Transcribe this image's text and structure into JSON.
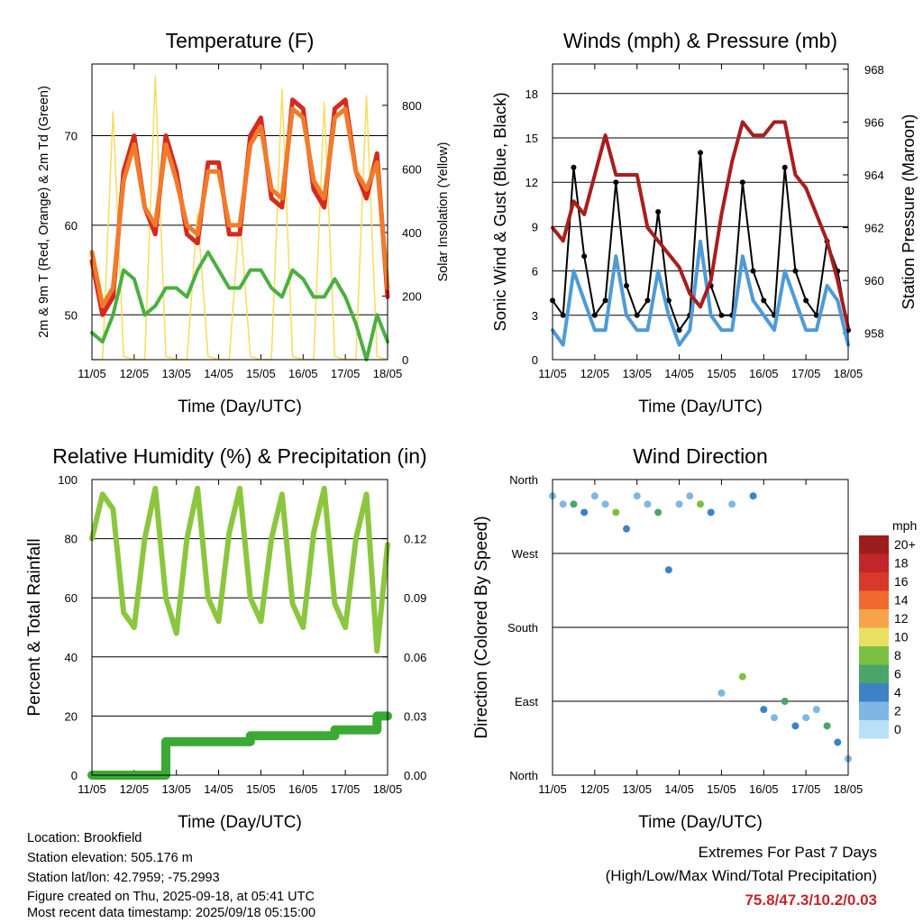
{
  "x_ticks": [
    "11/05",
    "12/05",
    "13/05",
    "14/05",
    "15/05",
    "16/05",
    "17/05",
    "18/05"
  ],
  "panels": {
    "temperature": {
      "title": "Temperature (F)",
      "xlabel": "Time (Day/UTC)",
      "ylabel_left": "2m & 9m T (Red, Orange) & 2m Td (Green)",
      "ylabel_right": "Solar Insolation (Yellow)",
      "yticks_left": [
        "50",
        "60",
        "70"
      ],
      "yticks_right": [
        "0",
        "200",
        "400",
        "600",
        "800"
      ]
    },
    "winds": {
      "title": "Winds (mph) & Pressure (mb)",
      "xlabel": "Time (Day/UTC)",
      "ylabel_left": "Sonic Wind & Gust (Blue, Black)",
      "ylabel_right": "Station Pressure (Maroon)",
      "yticks_left": [
        "0",
        "3",
        "6",
        "9",
        "12",
        "15",
        "18"
      ],
      "yticks_right": [
        "958",
        "960",
        "962",
        "964",
        "966",
        "968"
      ]
    },
    "humidity": {
      "title": "Relative Humidity (%) & Precipitation (in)",
      "xlabel": "Time (Day/UTC)",
      "ylabel_left": "Percent & Total Rainfall",
      "yticks_left": [
        "0",
        "20",
        "40",
        "60",
        "80",
        "100"
      ],
      "yticks_right": [
        "0.00",
        "0.03",
        "0.06",
        "0.09",
        "0.12"
      ]
    },
    "direction": {
      "title": "Wind Direction",
      "xlabel": "Time (Day/UTC)",
      "ylabel_left": "Direction (Colored By Speed)",
      "yticks_left": [
        "North",
        "East",
        "South",
        "West",
        "North"
      ],
      "legend_title": "mph",
      "legend_labels": [
        "20+",
        "18",
        "16",
        "14",
        "12",
        "10",
        "8",
        "6",
        "4",
        "2",
        "0"
      ]
    }
  },
  "chart_data": [
    {
      "type": "line",
      "title": "Temperature (F)",
      "xlabel": "Time (Day/UTC)",
      "ylabel": "2m & 9m T (Red, Orange) & 2m Td (Green)",
      "y2label": "Solar Insolation (Yellow)",
      "x": [
        "11/05",
        "11/05 06",
        "11/05 12",
        "11/05 18",
        "12/05",
        "12/05 06",
        "12/05 12",
        "12/05 18",
        "13/05",
        "13/05 06",
        "13/05 12",
        "13/05 18",
        "14/05",
        "14/05 06",
        "14/05 12",
        "14/05 18",
        "15/05",
        "15/05 06",
        "15/05 12",
        "15/05 18",
        "16/05",
        "16/05 06",
        "16/05 12",
        "16/05 18",
        "17/05",
        "17/05 06",
        "17/05 12",
        "17/05 18",
        "18/05"
      ],
      "ylim": [
        45,
        78
      ],
      "y2lim": [
        0,
        930
      ],
      "series": [
        {
          "name": "2m T",
          "color": "#d42a20",
          "values": [
            56,
            50,
            52,
            66,
            70,
            62,
            59,
            70,
            66,
            59,
            58,
            67,
            67,
            59,
            59,
            70,
            72,
            63,
            62,
            74,
            73,
            64,
            62,
            73,
            74,
            66,
            63,
            68,
            52
          ]
        },
        {
          "name": "9m T",
          "color": "#f07c2a",
          "values": [
            57,
            51,
            53,
            65,
            69,
            62,
            60,
            69,
            65,
            60,
            59,
            66,
            66,
            60,
            60,
            69,
            71,
            64,
            63,
            73,
            72,
            65,
            63,
            72,
            73,
            66,
            64,
            67,
            53
          ]
        },
        {
          "name": "2m Td",
          "color": "#4ab040",
          "values": [
            48,
            47,
            50,
            55,
            54,
            50,
            51,
            53,
            53,
            52,
            55,
            57,
            55,
            53,
            53,
            55,
            55,
            53,
            52,
            55,
            54,
            52,
            52,
            54,
            52,
            49,
            45,
            50,
            47
          ]
        },
        {
          "name": "Solar Insolation",
          "color": "#f7dc5c",
          "axis": "right",
          "values": [
            0,
            0,
            780,
            10,
            0,
            0,
            890,
            10,
            0,
            0,
            460,
            10,
            0,
            0,
            460,
            10,
            0,
            0,
            850,
            10,
            0,
            0,
            810,
            10,
            0,
            0,
            830,
            10,
            0
          ]
        }
      ]
    },
    {
      "type": "line",
      "title": "Winds (mph) & Pressure (mb)",
      "xlabel": "Time (Day/UTC)",
      "ylabel": "Sonic Wind & Gust (Blue, Black)",
      "y2label": "Station Pressure (Maroon)",
      "x": [
        "11/05",
        "11/05 06",
        "11/05 12",
        "11/05 18",
        "12/05",
        "12/05 06",
        "12/05 12",
        "12/05 18",
        "13/05",
        "13/05 06",
        "13/05 12",
        "13/05 18",
        "14/05",
        "14/05 06",
        "14/05 12",
        "14/05 18",
        "15/05",
        "15/05 06",
        "15/05 12",
        "15/05 18",
        "16/05",
        "16/05 06",
        "16/05 12",
        "16/05 18",
        "17/05",
        "17/05 06",
        "17/05 12",
        "17/05 18",
        "18/05"
      ],
      "ylim": [
        0,
        20
      ],
      "y2lim": [
        957,
        968.2
      ],
      "series": [
        {
          "name": "Sonic Wind",
          "color": "#4f9ad6",
          "values": [
            2,
            1,
            6,
            4,
            2,
            2,
            7,
            3,
            2,
            2,
            6,
            3,
            1,
            2,
            8,
            3,
            2,
            2,
            7,
            4,
            3,
            2,
            6,
            4,
            2,
            2,
            5,
            4,
            1
          ]
        },
        {
          "name": "Gust",
          "color": "#000000",
          "values": [
            4,
            3,
            13,
            7,
            3,
            4,
            12,
            5,
            3,
            4,
            10,
            4,
            2,
            3,
            14,
            5,
            3,
            3,
            12,
            6,
            4,
            3,
            13,
            6,
            4,
            3,
            8,
            6,
            2
          ]
        },
        {
          "name": "Station Pressure",
          "color": "#a81e1e",
          "axis": "right",
          "values": [
            962,
            961.5,
            963,
            962.5,
            964,
            965.5,
            964,
            964,
            964,
            962,
            961.5,
            961,
            960.5,
            959.5,
            959,
            960,
            962.5,
            964.5,
            966,
            965.5,
            965.5,
            966,
            966,
            964,
            963.5,
            962.5,
            961.5,
            960,
            958.2
          ]
        }
      ]
    },
    {
      "type": "line",
      "title": "Relative Humidity (%) & Precipitation (in)",
      "xlabel": "Time (Day/UTC)",
      "ylabel": "Percent & Total Rainfall",
      "x": [
        "11/05",
        "11/05 06",
        "11/05 12",
        "11/05 18",
        "12/05",
        "12/05 06",
        "12/05 12",
        "12/05 18",
        "13/05",
        "13/05 06",
        "13/05 12",
        "13/05 18",
        "14/05",
        "14/05 06",
        "14/05 12",
        "14/05 18",
        "15/05",
        "15/05 06",
        "15/05 12",
        "15/05 18",
        "16/05",
        "16/05 06",
        "16/05 12",
        "16/05 18",
        "17/05",
        "17/05 06",
        "17/05 12",
        "17/05 18",
        "18/05"
      ],
      "ylim": [
        0,
        100
      ],
      "y2lim": [
        0,
        0.15
      ],
      "series": [
        {
          "name": "Relative Humidity",
          "color": "#8cc63f",
          "values": [
            80,
            95,
            90,
            55,
            50,
            80,
            97,
            60,
            48,
            80,
            97,
            60,
            52,
            82,
            97,
            60,
            52,
            80,
            95,
            58,
            50,
            82,
            97,
            58,
            50,
            80,
            95,
            42,
            78
          ]
        },
        {
          "name": "Total Precipitation",
          "color": "#3aaa35",
          "axis": "right",
          "values": [
            0,
            0,
            0,
            0,
            0,
            0,
            0.0,
            0.017,
            0.017,
            0.017,
            0.017,
            0.017,
            0.017,
            0.017,
            0.017,
            0.02,
            0.02,
            0.02,
            0.02,
            0.02,
            0.02,
            0.02,
            0.02,
            0.023,
            0.023,
            0.023,
            0.023,
            0.03,
            0.03
          ]
        }
      ]
    },
    {
      "type": "scatter",
      "title": "Wind Direction",
      "xlabel": "Time (Day/UTC)",
      "ylabel": "Direction (Colored By Speed)",
      "x": [
        "11/05",
        "11/05 06",
        "11/05 12",
        "11/05 18",
        "12/05",
        "12/05 06",
        "12/05 12",
        "12/05 18",
        "13/05",
        "13/05 06",
        "13/05 12",
        "13/05 18",
        "14/05",
        "14/05 06",
        "14/05 12",
        "14/05 18",
        "15/05",
        "15/05 06",
        "15/05 12",
        "15/05 18",
        "16/05",
        "16/05 06",
        "16/05 12",
        "16/05 18",
        "17/05",
        "17/05 06",
        "17/05 12",
        "17/05 18",
        "18/05"
      ],
      "ylim": [
        0,
        360
      ],
      "series": [
        {
          "name": "Direction (deg)",
          "values": [
            340,
            330,
            330,
            320,
            340,
            330,
            320,
            300,
            340,
            330,
            320,
            250,
            330,
            340,
            330,
            320,
            100,
            330,
            120,
            340,
            80,
            70,
            90,
            60,
            70,
            80,
            60,
            40,
            20
          ]
        }
      ],
      "colorbar": {
        "unit": "mph",
        "labels": [
          "20+",
          "18",
          "16",
          "14",
          "12",
          "10",
          "8",
          "6",
          "4",
          "2",
          "0"
        ],
        "colors": [
          "#9b1d1d",
          "#c2252a",
          "#d8392c",
          "#ef6a2e",
          "#f6a44a",
          "#e7e060",
          "#7cc043",
          "#4aa56b",
          "#3c82c4",
          "#7fb7e4",
          "#b9e0f6"
        ]
      }
    }
  ],
  "info": {
    "location": "Location: Brookfield",
    "elevation": "Station elevation: 505.176 m",
    "latlon": "Station lat/lon: 42.7959; -75.2993",
    "created": "Figure created on Thu, 2025-09-18, at 05:41 UTC",
    "recent": "Most recent data timestamp: 2025/09/18 05:15:00"
  },
  "extremes": {
    "line1": "Extremes For Past 7 Days",
    "line2": "(High/Low/Max Wind/Total Precipitation)",
    "values": "75.8/47.3/10.2/0.03"
  }
}
